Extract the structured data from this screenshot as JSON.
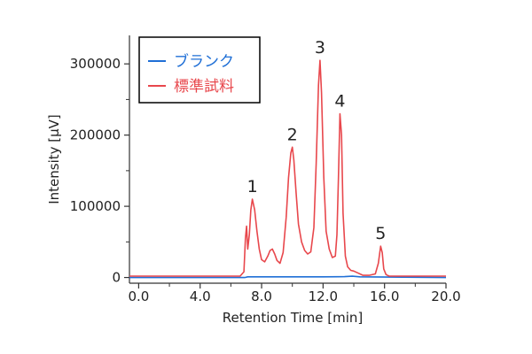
{
  "chart_data": {
    "type": "line",
    "title": "",
    "xlabel": "Retention Time [min]",
    "ylabel": "Intensity [µV]",
    "xlim": [
      -0.6,
      20.0
    ],
    "ylim": [
      -8000,
      340000
    ],
    "x_ticks": [
      {
        "value": 0.0,
        "label": "0.0"
      },
      {
        "value": 4.0,
        "label": "4.0"
      },
      {
        "value": 8.0,
        "label": "8.0"
      },
      {
        "value": 12.0,
        "label": "12.0"
      },
      {
        "value": 16.0,
        "label": "16.0"
      },
      {
        "value": 20.0,
        "label": "20.0"
      }
    ],
    "y_ticks": [
      {
        "value": 0,
        "label": "0"
      },
      {
        "value": 100000,
        "label": "100000"
      },
      {
        "value": 200000,
        "label": "200000"
      },
      {
        "value": 300000,
        "label": "300000"
      }
    ],
    "grid": false,
    "legend_position": "top-left",
    "series": [
      {
        "name": "ブランク",
        "color": "#1f6fd6",
        "x": [
          -0.6,
          6.9,
          7.1,
          12.0,
          13.4,
          13.9,
          14.4,
          20.0
        ],
        "values": [
          0,
          0,
          1000,
          1000,
          1200,
          1800,
          1000,
          0
        ]
      },
      {
        "name": "標準試料",
        "color": "#e8474c",
        "x": [
          -0.6,
          6.6,
          6.85,
          6.95,
          7.02,
          7.1,
          7.2,
          7.3,
          7.4,
          7.55,
          7.7,
          7.85,
          8.0,
          8.2,
          8.4,
          8.55,
          8.7,
          8.85,
          9.0,
          9.2,
          9.4,
          9.6,
          9.75,
          9.9,
          10.0,
          10.1,
          10.25,
          10.4,
          10.6,
          10.8,
          11.0,
          11.2,
          11.4,
          11.55,
          11.7,
          11.8,
          11.9,
          12.05,
          12.2,
          12.4,
          12.6,
          12.8,
          12.9,
          13.0,
          13.1,
          13.2,
          13.3,
          13.45,
          13.6,
          13.8,
          14.0,
          14.3,
          14.6,
          15.0,
          15.4,
          15.6,
          15.75,
          15.85,
          15.95,
          16.1,
          16.3,
          17.0,
          20.0
        ],
        "values": [
          2000,
          2000,
          8000,
          55000,
          72000,
          40000,
          60000,
          95000,
          110000,
          95000,
          65000,
          40000,
          25000,
          22000,
          30000,
          38000,
          40000,
          33000,
          24000,
          20000,
          35000,
          85000,
          140000,
          175000,
          183000,
          165000,
          118000,
          75000,
          50000,
          38000,
          33000,
          36000,
          70000,
          160000,
          270000,
          305000,
          260000,
          140000,
          65000,
          40000,
          28000,
          30000,
          60000,
          140000,
          230000,
          200000,
          90000,
          30000,
          15000,
          10000,
          9000,
          6000,
          3000,
          3000,
          5000,
          20000,
          44000,
          35000,
          12000,
          4000,
          2000,
          2000,
          2000
        ]
      }
    ],
    "annotations": [
      {
        "text": "1",
        "x": 7.4,
        "y": 110000
      },
      {
        "text": "2",
        "x": 10.0,
        "y": 183000
      },
      {
        "text": "3",
        "x": 11.8,
        "y": 305000
      },
      {
        "text": "4",
        "x": 13.1,
        "y": 230000
      },
      {
        "text": "5",
        "x": 15.75,
        "y": 44000
      }
    ]
  }
}
